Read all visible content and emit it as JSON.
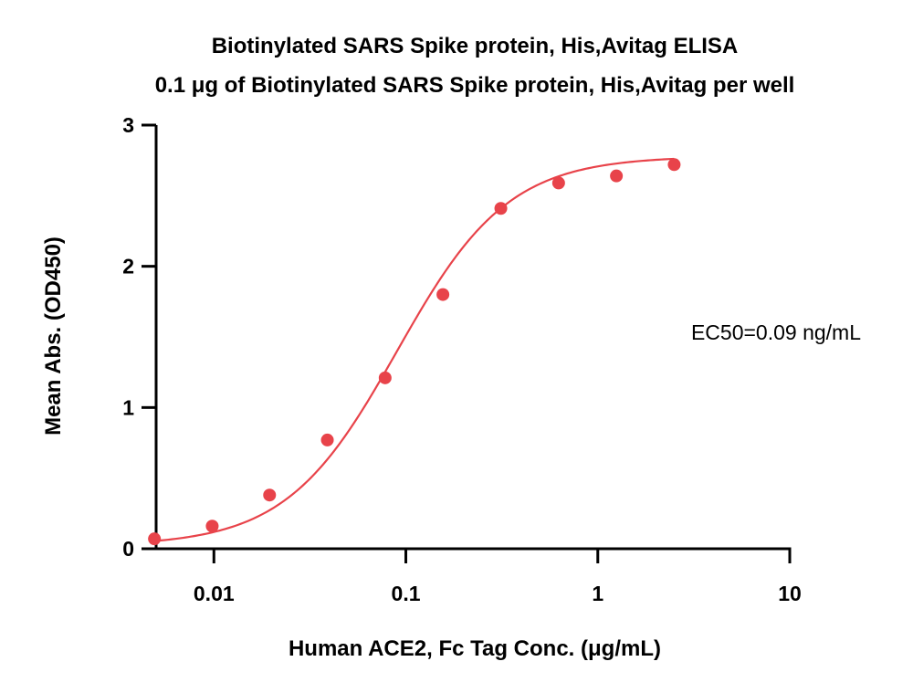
{
  "chart_data": {
    "type": "scatter",
    "title": "Biotinylated SARS Spike protein, His,Avitag ELISA",
    "subtitle": "0.1 μg of Biotinylated SARS Spike protein, His,Avitag per well",
    "xlabel": "Human ACE2, Fc Tag Conc. (μg/mL)",
    "ylabel": "Mean Abs. (OD450)",
    "xscale": "log",
    "xlim": [
      0.005,
      10
    ],
    "ylim": [
      0,
      3
    ],
    "xticks": [
      0.01,
      0.1,
      1,
      10
    ],
    "xtick_labels": [
      "0.01",
      "0.1",
      "1",
      "10"
    ],
    "yticks": [
      0,
      1,
      2,
      3
    ],
    "ytick_labels": [
      "0",
      "1",
      "2",
      "3"
    ],
    "grid": false,
    "annotation": "EC50=0.09 ng/mL",
    "series": [
      {
        "color": "#e8434a",
        "x": [
          0.0049,
          0.0098,
          0.0195,
          0.039,
          0.078,
          0.156,
          0.3125,
          0.625,
          1.25,
          2.5
        ],
        "y": [
          0.07,
          0.16,
          0.38,
          0.77,
          1.21,
          1.8,
          2.41,
          2.59,
          2.64,
          2.72
        ],
        "fit": {
          "model": "4PL",
          "bottom": 0.02,
          "top": 2.78,
          "ec50": 0.09,
          "hill": 1.5
        }
      }
    ]
  }
}
